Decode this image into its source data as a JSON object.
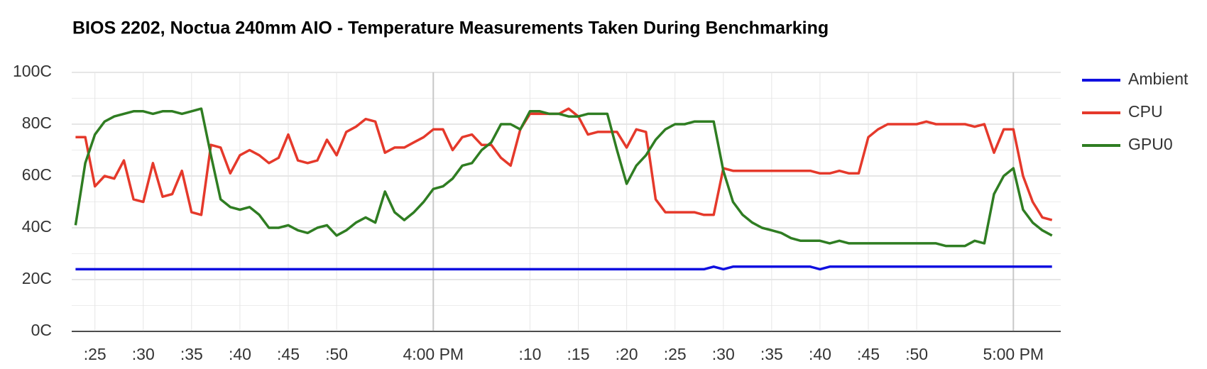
{
  "chart_data": {
    "type": "line",
    "title": "BIOS 2202, Noctua 240mm AIO - Temperature Measurements Taken During Benchmarking",
    "x": [
      "3:23 PM",
      "3:24 PM",
      "3:25 PM",
      "3:26 PM",
      "3:27 PM",
      "3:28 PM",
      "3:29 PM",
      "3:30 PM",
      "3:31 PM",
      "3:32 PM",
      "3:33 PM",
      "3:34 PM",
      "3:35 PM",
      "3:36 PM",
      "3:37 PM",
      "3:38 PM",
      "3:39 PM",
      "3:40 PM",
      "3:41 PM",
      "3:42 PM",
      "3:43 PM",
      "3:44 PM",
      "3:45 PM",
      "3:46 PM",
      "3:47 PM",
      "3:48 PM",
      "3:49 PM",
      "3:50 PM",
      "3:51 PM",
      "3:52 PM",
      "3:53 PM",
      "3:54 PM",
      "3:55 PM",
      "3:56 PM",
      "3:57 PM",
      "3:58 PM",
      "3:59 PM",
      "4:00 PM",
      "4:01 PM",
      "4:02 PM",
      "4:03 PM",
      "4:04 PM",
      "4:05 PM",
      "4:06 PM",
      "4:07 PM",
      "4:08 PM",
      "4:09 PM",
      "4:10 PM",
      "4:11 PM",
      "4:12 PM",
      "4:13 PM",
      "4:14 PM",
      "4:15 PM",
      "4:16 PM",
      "4:17 PM",
      "4:18 PM",
      "4:19 PM",
      "4:20 PM",
      "4:21 PM",
      "4:22 PM",
      "4:23 PM",
      "4:24 PM",
      "4:25 PM",
      "4:26 PM",
      "4:27 PM",
      "4:28 PM",
      "4:29 PM",
      "4:30 PM",
      "4:31 PM",
      "4:32 PM",
      "4:33 PM",
      "4:34 PM",
      "4:35 PM",
      "4:36 PM",
      "4:37 PM",
      "4:38 PM",
      "4:39 PM",
      "4:40 PM",
      "4:41 PM",
      "4:42 PM",
      "4:43 PM",
      "4:44 PM",
      "4:45 PM",
      "4:46 PM",
      "4:47 PM",
      "4:48 PM",
      "4:49 PM",
      "4:50 PM",
      "4:51 PM",
      "4:52 PM",
      "4:53 PM",
      "4:54 PM",
      "4:55 PM",
      "4:56 PM",
      "4:57 PM",
      "4:58 PM",
      "4:59 PM",
      "5:00 PM",
      "5:01 PM",
      "5:02 PM",
      "5:03 PM",
      "5:04 PM"
    ],
    "series": [
      {
        "name": "Ambient",
        "color": "#1010e0",
        "values": [
          24,
          24,
          24,
          24,
          24,
          24,
          24,
          24,
          24,
          24,
          24,
          24,
          24,
          24,
          24,
          24,
          24,
          24,
          24,
          24,
          24,
          24,
          24,
          24,
          24,
          24,
          24,
          24,
          24,
          24,
          24,
          24,
          24,
          24,
          24,
          24,
          24,
          24,
          24,
          24,
          24,
          24,
          24,
          24,
          24,
          24,
          24,
          24,
          24,
          24,
          24,
          24,
          24,
          24,
          24,
          24,
          24,
          24,
          24,
          24,
          24,
          24,
          24,
          24,
          24,
          24,
          25,
          24,
          25,
          25,
          25,
          25,
          25,
          25,
          25,
          25,
          25,
          24,
          25,
          25,
          25,
          25,
          25,
          25,
          25,
          25,
          25,
          25,
          25,
          25,
          25,
          25,
          25,
          25,
          25,
          25,
          25,
          25,
          25,
          25,
          25,
          25
        ]
      },
      {
        "name": "CPU",
        "color": "#e5392b",
        "values": [
          75,
          75,
          56,
          60,
          59,
          66,
          51,
          50,
          65,
          52,
          53,
          62,
          46,
          45,
          72,
          71,
          61,
          68,
          70,
          68,
          65,
          67,
          76,
          66,
          65,
          66,
          74,
          68,
          77,
          79,
          82,
          81,
          69,
          71,
          71,
          73,
          75,
          78,
          78,
          70,
          75,
          76,
          72,
          72,
          67,
          64,
          78,
          84,
          84,
          84,
          84,
          86,
          83,
          76,
          77,
          77,
          77,
          71,
          78,
          77,
          51,
          46,
          46,
          46,
          46,
          45,
          45,
          63,
          62,
          62,
          62,
          62,
          62,
          62,
          62,
          62,
          62,
          61,
          61,
          62,
          61,
          61,
          75,
          78,
          80,
          80,
          80,
          80,
          81,
          80,
          80,
          80,
          80,
          79,
          80,
          69,
          78,
          78,
          60,
          50,
          44,
          43
        ]
      },
      {
        "name": "GPU0",
        "color": "#2f7d22",
        "values": [
          41,
          65,
          76,
          81,
          83,
          84,
          85,
          85,
          84,
          85,
          85,
          84,
          85,
          86,
          68,
          51,
          48,
          47,
          48,
          45,
          40,
          40,
          41,
          39,
          38,
          40,
          41,
          37,
          39,
          42,
          44,
          42,
          54,
          46,
          43,
          46,
          50,
          55,
          56,
          59,
          64,
          65,
          70,
          73,
          80,
          80,
          78,
          85,
          85,
          84,
          84,
          83,
          83,
          84,
          84,
          84,
          70,
          57,
          64,
          68,
          74,
          78,
          80,
          80,
          81,
          81,
          81,
          62,
          50,
          45,
          42,
          40,
          39,
          38,
          36,
          35,
          35,
          35,
          34,
          35,
          34,
          34,
          34,
          34,
          34,
          34,
          34,
          34,
          34,
          34,
          33,
          33,
          33,
          35,
          34,
          53,
          60,
          63,
          47,
          42,
          39,
          37
        ]
      }
    ],
    "xlim": [
      "3:22:36 PM",
      "5:04:54 PM"
    ],
    "xticks": [
      {
        "value": "3:25 PM",
        "label": ":25"
      },
      {
        "value": "3:30 PM",
        "label": ":30"
      },
      {
        "value": "3:35 PM",
        "label": ":35"
      },
      {
        "value": "3:40 PM",
        "label": ":40"
      },
      {
        "value": "3:45 PM",
        "label": ":45"
      },
      {
        "value": "3:50 PM",
        "label": ":50"
      },
      "4:00 PM",
      {
        "value": "4:10 PM",
        "label": ":10"
      },
      {
        "value": "4:15 PM",
        "label": ":15"
      },
      {
        "value": "4:20 PM",
        "label": ":20"
      },
      {
        "value": "4:25 PM",
        "label": ":25"
      },
      {
        "value": "4:30 PM",
        "label": ":30"
      },
      {
        "value": "4:35 PM",
        "label": ":35"
      },
      {
        "value": "4:40 PM",
        "label": ":40"
      },
      {
        "value": "4:45 PM",
        "label": ":45"
      },
      {
        "value": "4:50 PM",
        "label": ":50"
      },
      "5:00 PM"
    ],
    "ylim": [
      0,
      100
    ],
    "yticks": [
      {
        "value": 0,
        "label": "0C"
      },
      {
        "value": 20,
        "label": "20C"
      },
      {
        "value": 40,
        "label": "40C"
      },
      {
        "value": 60,
        "label": "60C"
      },
      {
        "value": 80,
        "label": "80C"
      },
      {
        "value": 100,
        "label": "100C"
      }
    ],
    "grid": true,
    "legend": "right"
  }
}
